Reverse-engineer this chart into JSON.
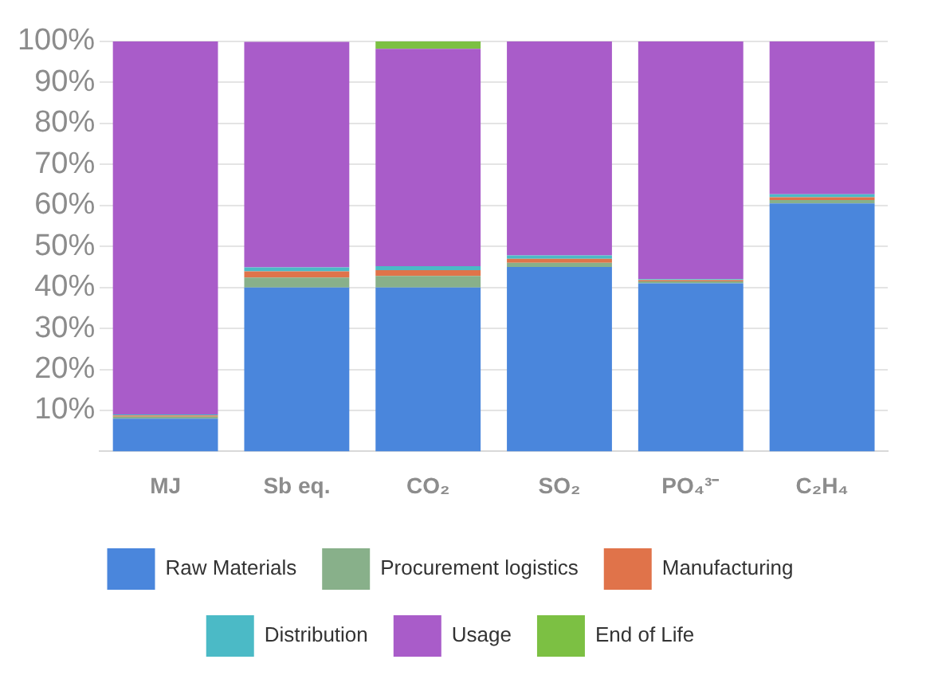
{
  "chart_data": {
    "type": "bar",
    "stacked": true,
    "categories": [
      "MJ",
      "Sb eq.",
      "CO₂",
      "SO₂",
      "PO₄³⁻",
      "C₂H₄"
    ],
    "series": [
      {
        "name": "Raw Materials",
        "color": "#4a86dc",
        "values": [
          8,
          40,
          40,
          45,
          41,
          60.5
        ]
      },
      {
        "name": "Procurement logistics",
        "color": "#88b08a",
        "values": [
          0.5,
          2.4,
          2.8,
          1,
          0.5,
          0.8
        ]
      },
      {
        "name": "Manufacturing",
        "color": "#e0734a",
        "values": [
          0.3,
          1.5,
          1.4,
          1,
          0.3,
          0.7
        ]
      },
      {
        "name": "Distribution",
        "color": "#4bbac6",
        "values": [
          0.2,
          1,
          1,
          0.8,
          0.2,
          0.7
        ]
      },
      {
        "name": "Usage",
        "color": "#a95cc9",
        "values": [
          91,
          55,
          53,
          52.2,
          58,
          37.3
        ]
      },
      {
        "name": "End of Life",
        "color": "#7cc043",
        "values": [
          0,
          null,
          1.8,
          0,
          0,
          0
        ]
      }
    ],
    "ylim": [
      0,
      100
    ],
    "yticks": [
      {
        "value": 10,
        "label": "10%"
      },
      {
        "value": 20,
        "label": "20%"
      },
      {
        "value": 30,
        "label": "30%"
      },
      {
        "value": 40,
        "label": "40%"
      },
      {
        "value": 50,
        "label": "50%"
      },
      {
        "value": 60,
        "label": "60%"
      },
      {
        "value": 70,
        "label": "70%"
      },
      {
        "value": 80,
        "label": "80%"
      },
      {
        "value": 90,
        "label": "90%"
      },
      {
        "value": 100,
        "label": "100%"
      }
    ],
    "grid": "y",
    "legend": "bottom"
  }
}
